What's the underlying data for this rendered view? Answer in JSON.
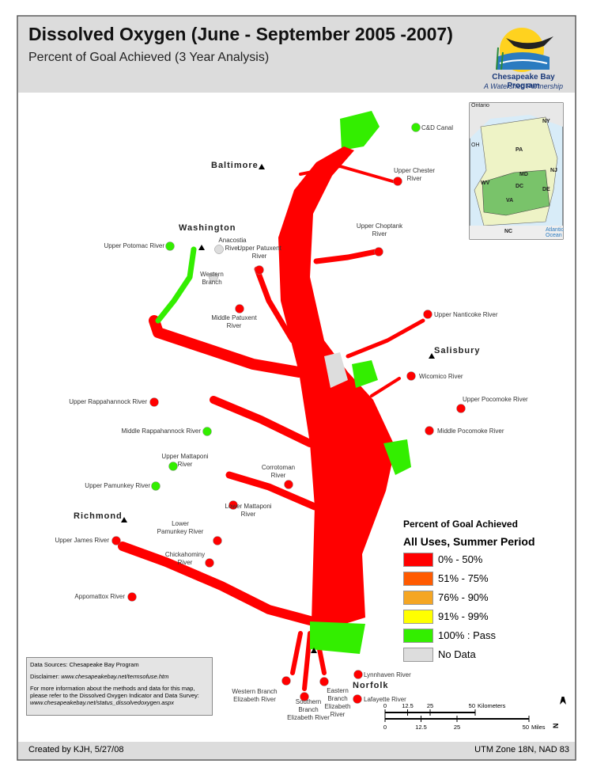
{
  "header": {
    "title": "Dissolved Oxygen (June - September 2005 -2007)",
    "subtitle": "Percent of Goal Achieved (3 Year Analysis)",
    "logo_name": "Chesapeake Bay Program",
    "logo_tagline": "A Watershed Partnership"
  },
  "legend": {
    "title": "Percent of Goal Achieved",
    "subtitle": "All Uses, Summer Period",
    "classes": [
      {
        "label": "0% - 50%",
        "color": "#ff0000"
      },
      {
        "label": "51% - 75%",
        "color": "#ff5a00"
      },
      {
        "label": "76% - 90%",
        "color": "#f5a623"
      },
      {
        "label": "91% - 99%",
        "color": "#ffff00"
      },
      {
        "label": "100% : Pass",
        "color": "#33ee00"
      },
      {
        "label": "No Data",
        "color": "#dddddd"
      }
    ]
  },
  "cities": [
    "Baltimore",
    "Washington",
    "Salisbury",
    "Richmond",
    "Norfolk"
  ],
  "stations": [
    {
      "label": "C&D Canal",
      "class": 4
    },
    {
      "label": "Upper Chester River",
      "class": 0
    },
    {
      "label": "Upper Choptank River",
      "class": 0
    },
    {
      "label": "Upper Potomac River",
      "class": 4
    },
    {
      "label": "Anacostia River",
      "class": 5
    },
    {
      "label": "Upper Patuxent River",
      "class": 0
    },
    {
      "label": "Western Branch",
      "class": 5
    },
    {
      "label": "Middle Patuxent River",
      "class": 0
    },
    {
      "label": "Upper Nanticoke River",
      "class": 0
    },
    {
      "label": "Wicomico River",
      "class": 0
    },
    {
      "label": "Upper Pocomoke River",
      "class": 0
    },
    {
      "label": "Middle Pocomoke River",
      "class": 0
    },
    {
      "label": "Upper Rappahannock River",
      "class": 0
    },
    {
      "label": "Middle Rappahannock River",
      "class": 4
    },
    {
      "label": "Upper Mattaponi River",
      "class": 4
    },
    {
      "label": "Upper Pamunkey River",
      "class": 4
    },
    {
      "label": "Corrotoman River",
      "class": 0
    },
    {
      "label": "Lower Mattaponi River",
      "class": 0
    },
    {
      "label": "Lower Pamunkey River",
      "class": 0
    },
    {
      "label": "Upper James River",
      "class": 0
    },
    {
      "label": "Chickahominy River",
      "class": 0
    },
    {
      "label": "Appomattox River",
      "class": 0
    },
    {
      "label": "Lynnhaven River",
      "class": 0
    },
    {
      "label": "Lafayette River",
      "class": 0
    },
    {
      "label": "Eastern Branch Elizabeth River",
      "class": 0
    },
    {
      "label": "Southern Branch Elizabeth River",
      "class": 0
    },
    {
      "label": "Western Branch Elizabeth River",
      "class": 0
    }
  ],
  "inset": {
    "labels": [
      "Ontario",
      "OH",
      "NY",
      "PA",
      "NJ",
      "MD",
      "DC",
      "DE",
      "WV",
      "VA",
      "NC",
      "Atlantic Ocean"
    ]
  },
  "sources": {
    "data_sources": "Data Sources:  Chesapeake Bay Program",
    "disclaimer_label": "Disclaimer:",
    "disclaimer_url": "www.chesapeakebay.net/termsofuse.htm",
    "more_info": "For more information about the methods and data for this map, please refer to the Dissolved Oxygen Indicator and Data Survey:",
    "survey_url": "www.chesapeakebay.net/status_dissolvedoxygen.aspx"
  },
  "scale": {
    "km_ticks": [
      0,
      12.5,
      25,
      50
    ],
    "km_unit": "Kilometers",
    "mile_ticks": [
      0,
      12.5,
      25,
      50
    ],
    "mile_unit": "Miles",
    "north": "N"
  },
  "footer": {
    "credit": "Created by KJH, 5/27/08",
    "projection": "UTM Zone 18N, NAD 83"
  }
}
